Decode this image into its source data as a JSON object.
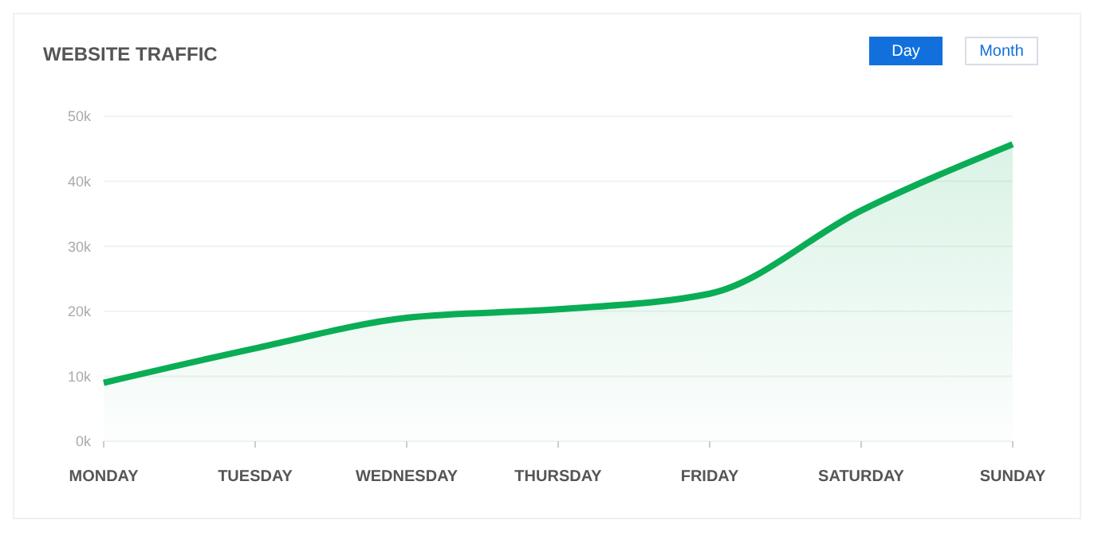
{
  "chart_data": {
    "type": "area",
    "title": "WEBSITE TRAFFIC",
    "categories": [
      "MONDAY",
      "TUESDAY",
      "WEDNESDAY",
      "THURSDAY",
      "FRIDAY",
      "SATURDAY",
      "SUNDAY"
    ],
    "series": [
      {
        "color": "#0aad55",
        "values": [
          9000,
          14300,
          19000,
          20300,
          22700,
          35500,
          45700
        ]
      }
    ],
    "ylim": [
      0,
      50000
    ],
    "yticks": [
      {
        "value": 0,
        "label": "0k"
      },
      {
        "value": 10000,
        "label": "10k"
      },
      {
        "value": 20000,
        "label": "20k"
      },
      {
        "value": 30000,
        "label": "30k"
      },
      {
        "value": 40000,
        "label": "40k"
      },
      {
        "value": 50000,
        "label": "50k"
      }
    ],
    "grid": "y",
    "annotations": [
      "Day",
      "Month"
    ]
  }
}
